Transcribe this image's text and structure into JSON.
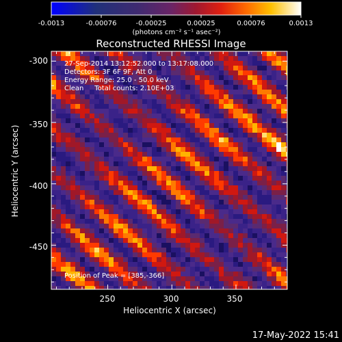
{
  "colorbar": {
    "tick_labels": [
      "-0.0013",
      "-0.00076",
      "-0.00025",
      "0.00025",
      "0.00076",
      "0.0013"
    ],
    "unit_label": "(photons cm⁻² s⁻¹ asec⁻²)",
    "colors": [
      "#0000ff",
      "#1a2aa0",
      "#33306a",
      "#5a2a70",
      "#8a2050",
      "#c01818",
      "#ff3300",
      "#ff8c00",
      "#ffd000",
      "#ffffff"
    ]
  },
  "title": "Reconstructed RHESSI Image",
  "annotations": [
    "27-Sep-2014 13:12:52.000 to 13:17:08.000",
    "Detectors: 3F 6F 9F, Att 0",
    "Energy Range: 25.0 - 50.0 keV",
    "Clean     Total counts: 2.10E+03"
  ],
  "peak_label": "Position of Peak = [385,-366]",
  "timestamp": "17-May-2022 15:41",
  "chart_data": {
    "type": "heatmap",
    "title": "Reconstructed RHESSI Image",
    "xlabel": "Heliocentric X (arcsec)",
    "ylabel": "Heliocentric Y (arcsec)",
    "x_ticks": [
      250,
      300,
      350
    ],
    "y_ticks": [
      -300,
      -350,
      -400,
      -450
    ],
    "xlim": [
      206,
      390
    ],
    "ylim": [
      -486,
      -292
    ],
    "value_range": [
      -0.0013,
      0.0013
    ],
    "peak": [
      385,
      -366
    ],
    "pattern": "diagonal stripes oriented upper-left to lower-right, alternating bright (red/orange/yellow) and dim (purple/dark) bands"
  }
}
